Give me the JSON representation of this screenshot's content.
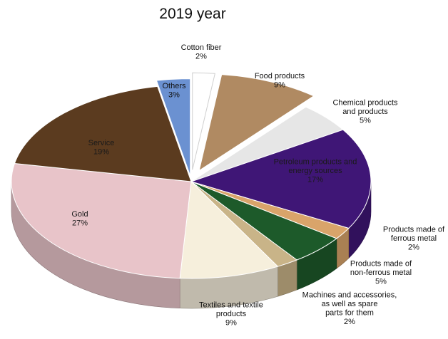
{
  "chart_data": {
    "type": "pie",
    "title": "2019 year",
    "slices": [
      {
        "name": "Cotton fiber",
        "percent_label": "2%",
        "value": 2,
        "color": "#ffffff"
      },
      {
        "name": "Food products",
        "percent_label": "9%",
        "value": 9,
        "color": "#b08a62"
      },
      {
        "name": "Chemical products and products",
        "percent_label": "5%",
        "value": 5,
        "color": "#e6e6e6"
      },
      {
        "name": "Petroleum products and energy sources",
        "percent_label": "17%",
        "value": 17,
        "color": "#3f1676"
      },
      {
        "name": "Products made of ferrous metal",
        "percent_label": "2%",
        "value": 2,
        "color": "#d9a46a"
      },
      {
        "name": "Products made of non-ferrous metal",
        "percent_label": "5%",
        "value": 5,
        "color": "#1d5a2a"
      },
      {
        "name": "Machines and accessories, as well as spare parts for them",
        "percent_label": "2%",
        "value": 2,
        "color": "#c9b488"
      },
      {
        "name": "Textiles and textile products",
        "percent_label": "9%",
        "value": 9,
        "color": "#f6efdc"
      },
      {
        "name": "Gold",
        "percent_label": "27%",
        "value": 27,
        "color": "#e8c4c9"
      },
      {
        "name": "Service",
        "percent_label": "19%",
        "value": 19,
        "color": "#5b3b1f"
      },
      {
        "name": "Others",
        "percent_label": "3%",
        "value": 3,
        "color": "#6b91d1"
      }
    ]
  }
}
